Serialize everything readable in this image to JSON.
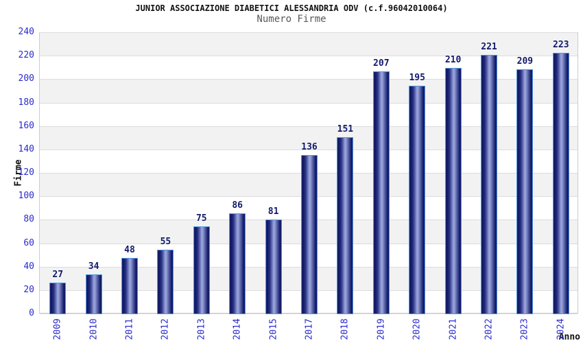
{
  "chart_data": {
    "type": "bar",
    "suptitle": "JUNIOR ASSOCIAZIONE DIABETICI ALESSANDRIA ODV (c.f.96042010064)",
    "title": "Numero Firme",
    "xlabel": "Anno",
    "ylabel": "Firme",
    "categories": [
      "2009",
      "2010",
      "2011",
      "2012",
      "2013",
      "2014",
      "2015",
      "2017",
      "2018",
      "2019",
      "2020",
      "2021",
      "2022",
      "2023",
      "2024"
    ],
    "values": [
      27,
      34,
      48,
      55,
      75,
      86,
      81,
      136,
      151,
      207,
      195,
      210,
      221,
      209,
      223
    ],
    "ylim": [
      0,
      240
    ],
    "y_ticks": [
      0,
      20,
      40,
      60,
      80,
      100,
      120,
      140,
      160,
      180,
      200,
      220,
      240
    ],
    "grid": "horizontal gridlines every 20 with alternating gray/white bands",
    "legend": "none",
    "colors": {
      "bar_border": "#4e97e0",
      "bar_dark": "#10175f",
      "bar_light": "#9ba5dc",
      "tick_label": "#2a2acc",
      "value_label": "#12196b",
      "band_gray": "#f2f2f2",
      "gridline": "#dcdcdc",
      "plot_border": "#cccccc",
      "title_color": "#111111",
      "subtitle_color": "#55585c"
    }
  }
}
